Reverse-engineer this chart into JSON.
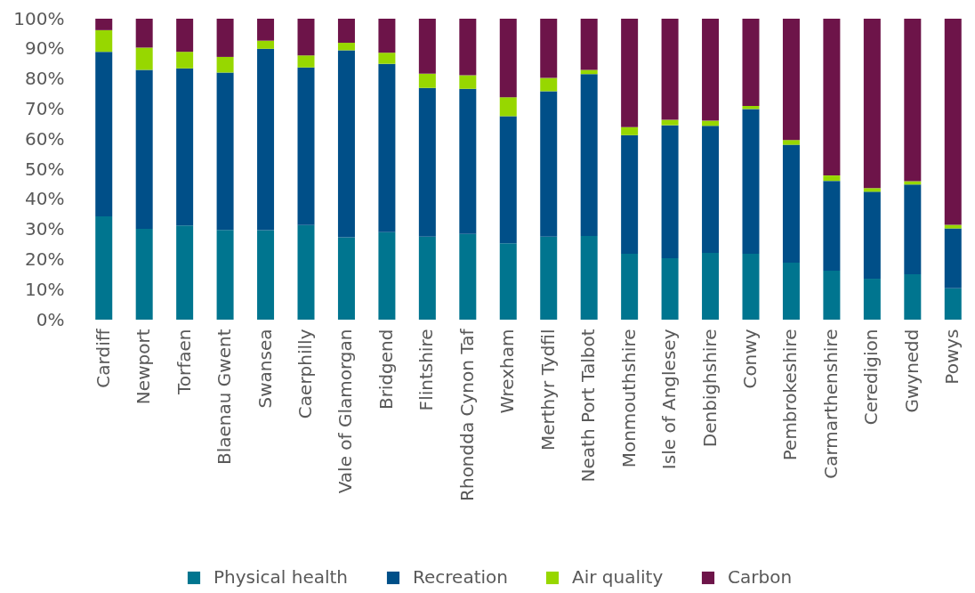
{
  "chart_data": {
    "type": "bar",
    "stacked": true,
    "legend": "bottom",
    "categories": [
      "Cardiff",
      "Newport",
      "Torfaen",
      "Blaenau Gwent",
      "Swansea",
      "Caerphilly",
      "Vale of Glamorgan",
      "Bridgend",
      "Flintshire",
      "Rhondda Cynon Taf",
      "Wrexham",
      "Merthyr Tydfil",
      "Neath Port Talbot",
      "Monmouthshire",
      "Isle of Anglesey",
      "Denbighshire",
      "Conwy",
      "Pembrokeshire",
      "Carmarthenshire",
      "Ceredigion",
      "Gwynedd",
      "Powys"
    ],
    "series": [
      {
        "name": "Physical health",
        "color": "#00758f",
        "values": [
          34.3,
          30.2,
          31.3,
          29.8,
          29.7,
          31.4,
          27.4,
          29.1,
          27.6,
          28.5,
          25.4,
          27.6,
          27.8,
          21.9,
          20.4,
          22.2,
          21.9,
          18.9,
          16.3,
          13.6,
          15.1,
          10.4
        ]
      },
      {
        "name": "Recreation",
        "color": "#004f88",
        "values": [
          54.7,
          52.8,
          52.2,
          52.3,
          60.3,
          52.4,
          62.1,
          55.9,
          49.4,
          48.2,
          42.2,
          48.3,
          53.8,
          39.4,
          44.2,
          42.2,
          48.1,
          39.2,
          29.8,
          28.9,
          29.8,
          19.9
        ]
      },
      {
        "name": "Air quality",
        "color": "#97d700",
        "values": [
          7.2,
          7.4,
          5.5,
          5.2,
          2.7,
          4.0,
          2.5,
          3.7,
          4.7,
          4.5,
          6.3,
          4.4,
          1.4,
          2.7,
          1.8,
          1.7,
          1.0,
          1.6,
          1.8,
          1.2,
          1.1,
          1.2
        ]
      },
      {
        "name": "Carbon",
        "color": "#6d1449",
        "values": [
          3.8,
          9.6,
          11.0,
          12.7,
          7.3,
          12.2,
          8.0,
          11.3,
          18.3,
          18.8,
          26.1,
          19.7,
          17.0,
          36.0,
          33.6,
          33.9,
          29.0,
          40.3,
          52.1,
          56.3,
          54.0,
          68.5
        ]
      }
    ],
    "ylim": [
      0,
      100
    ],
    "yticks": [
      {
        "value": 0,
        "label": "0%"
      },
      {
        "value": 10,
        "label": "10%"
      },
      {
        "value": 20,
        "label": "20%"
      },
      {
        "value": 30,
        "label": "30%"
      },
      {
        "value": 40,
        "label": "40%"
      },
      {
        "value": 50,
        "label": "50%"
      },
      {
        "value": 60,
        "label": "60%"
      },
      {
        "value": 70,
        "label": "70%"
      },
      {
        "value": 80,
        "label": "80%"
      },
      {
        "value": 90,
        "label": "90%"
      },
      {
        "value": 100,
        "label": "100%"
      }
    ]
  }
}
